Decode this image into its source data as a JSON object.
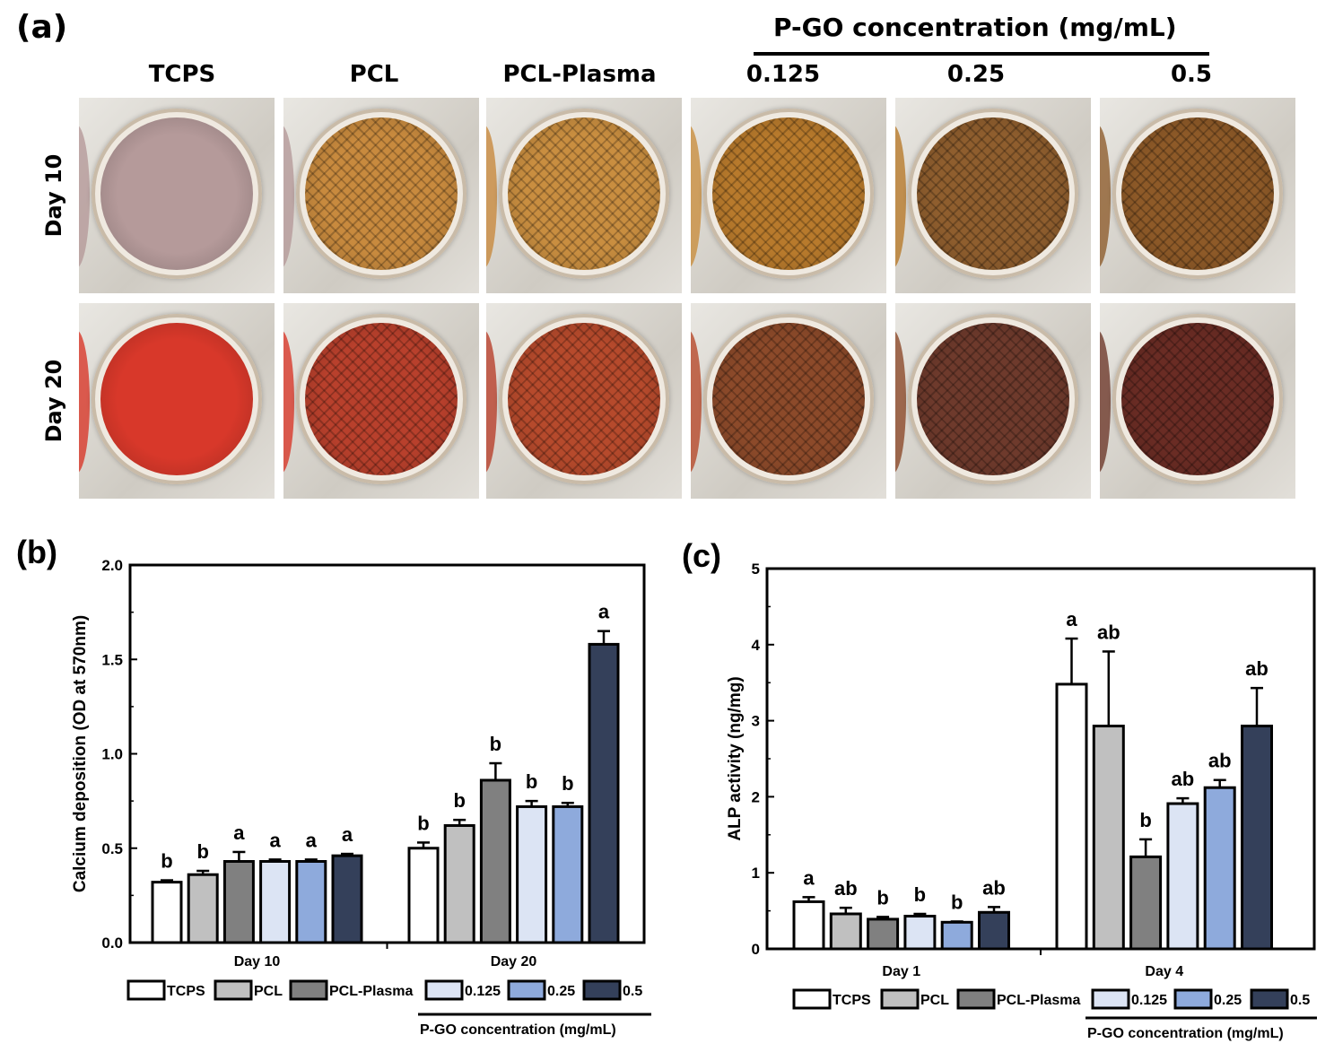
{
  "panel_a": {
    "label": "(a)",
    "conc_title": "P-GO concentration (mg/mL)",
    "columns": [
      "TCPS",
      "PCL",
      "PCL-Plasma",
      "0.125",
      "0.25",
      "0.5"
    ],
    "rows": [
      "Day 10",
      "Day 20"
    ],
    "well_colors": {
      "day10": [
        "#b59a9a",
        "#c88a3e",
        "#c98e40",
        "#b87a2c",
        "#8f5e2e",
        "#8e5a28"
      ],
      "day20": [
        "#d8382a",
        "#b8402c",
        "#b64a2c",
        "#8c4a2a",
        "#6e3a2c",
        "#6a2c24"
      ]
    },
    "grid_visible": [
      false,
      true,
      true,
      true,
      true,
      true
    ]
  },
  "chart_data": [
    {
      "type": "bar",
      "panel_label": "(b)",
      "ylabel": "Calcium deposition (OD at 570nm)",
      "ylim": [
        0,
        2.0
      ],
      "yticks": [
        "0.0",
        "0.5",
        "1.0",
        "1.5",
        "2.0"
      ],
      "categories": [
        "Day 10",
        "Day 20"
      ],
      "series": [
        {
          "name": "TCPS",
          "color": "#ffffff",
          "values": [
            0.32,
            0.5
          ],
          "errors": [
            0.01,
            0.03
          ],
          "letters": [
            "b",
            "b"
          ]
        },
        {
          "name": "PCL",
          "color": "#c0c0c0",
          "values": [
            0.36,
            0.62
          ],
          "errors": [
            0.02,
            0.03
          ],
          "letters": [
            "b",
            "b"
          ]
        },
        {
          "name": "PCL-Plasma",
          "color": "#808080",
          "values": [
            0.43,
            0.86
          ],
          "errors": [
            0.05,
            0.09
          ],
          "letters": [
            "a",
            "b"
          ]
        },
        {
          "name": "0.125",
          "color": "#dce4f4",
          "values": [
            0.43,
            0.72
          ],
          "errors": [
            0.01,
            0.03
          ],
          "letters": [
            "a",
            "b"
          ]
        },
        {
          "name": "0.25",
          "color": "#8eaadc",
          "values": [
            0.43,
            0.72
          ],
          "errors": [
            0.01,
            0.02
          ],
          "letters": [
            "a",
            "b"
          ]
        },
        {
          "name": "0.5",
          "color": "#34405a",
          "values": [
            0.46,
            1.58
          ],
          "errors": [
            0.01,
            0.07
          ],
          "letters": [
            "a",
            "a"
          ]
        }
      ],
      "legend_title": "P-GO concentration (mg/mL)"
    },
    {
      "type": "bar",
      "panel_label": "(c)",
      "ylabel": "ALP activity (ng/mg)",
      "ylim": [
        0,
        5
      ],
      "yticks": [
        "0",
        "1",
        "2",
        "3",
        "4",
        "5"
      ],
      "categories": [
        "Day 1",
        "Day 4"
      ],
      "series": [
        {
          "name": "TCPS",
          "color": "#ffffff",
          "values": [
            0.62,
            3.48
          ],
          "errors": [
            0.06,
            0.6
          ],
          "letters": [
            "a",
            "a"
          ]
        },
        {
          "name": "PCL",
          "color": "#c0c0c0",
          "values": [
            0.46,
            2.93
          ],
          "errors": [
            0.08,
            0.98
          ],
          "letters": [
            "ab",
            "ab"
          ]
        },
        {
          "name": "PCL-Plasma",
          "color": "#808080",
          "values": [
            0.39,
            1.21
          ],
          "errors": [
            0.03,
            0.23
          ],
          "letters": [
            "b",
            "b"
          ]
        },
        {
          "name": "0.125",
          "color": "#dce4f4",
          "values": [
            0.43,
            1.91
          ],
          "errors": [
            0.03,
            0.07
          ],
          "letters": [
            "b",
            "ab"
          ]
        },
        {
          "name": "0.25",
          "color": "#8eaadc",
          "values": [
            0.35,
            2.12
          ],
          "errors": [
            0.01,
            0.1
          ],
          "letters": [
            "b",
            "ab"
          ]
        },
        {
          "name": "0.5",
          "color": "#34405a",
          "values": [
            0.48,
            2.93
          ],
          "errors": [
            0.07,
            0.5
          ],
          "letters": [
            "ab",
            "ab"
          ]
        }
      ],
      "legend_title": "P-GO concentration (mg/mL)"
    }
  ]
}
